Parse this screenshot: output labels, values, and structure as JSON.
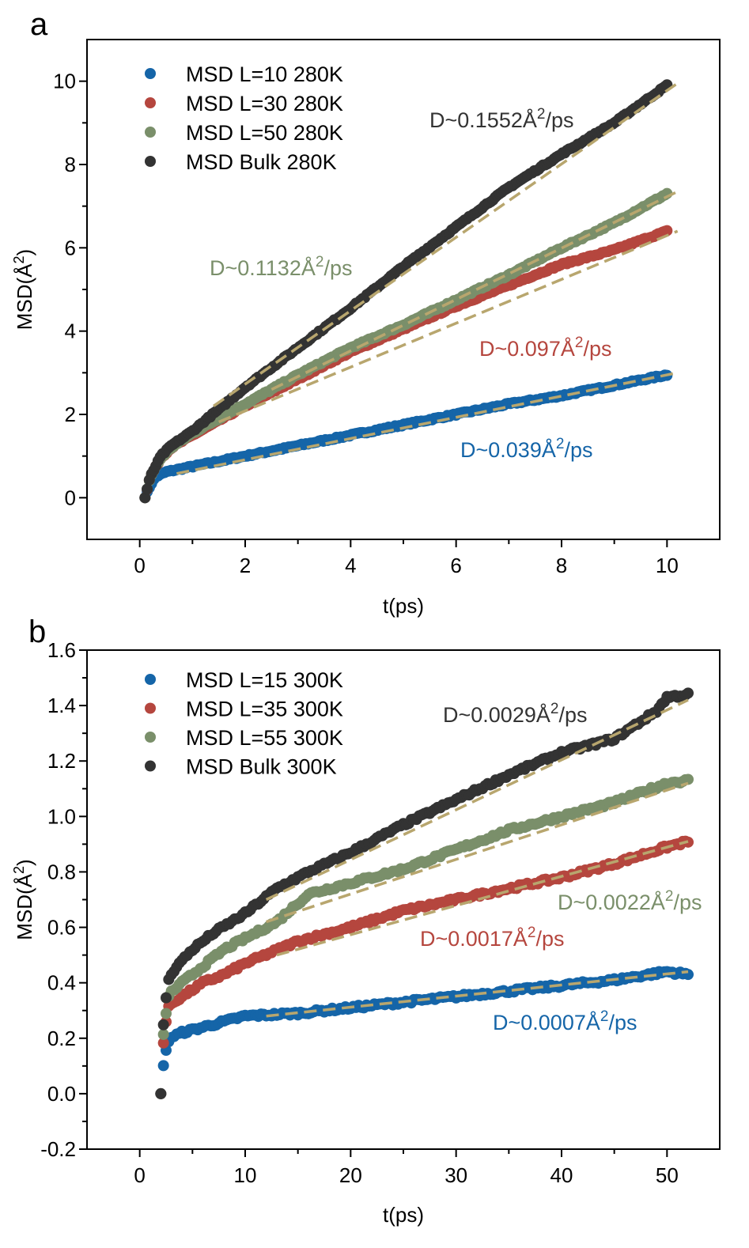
{
  "chart_data": [
    {
      "type": "scatter",
      "panel": "a",
      "xlabel": "t(ps)",
      "ylabel": "MSD(Å²)",
      "ylabel_main": "MSD(Å",
      "ylabel_sup": "2",
      "ylabel_close": ")",
      "xlim": [
        -1,
        11
      ],
      "ylim": [
        -1,
        11
      ],
      "xticks": [
        0,
        2,
        4,
        6,
        8,
        10
      ],
      "yticks": [
        0,
        2,
        4,
        6,
        8,
        10
      ],
      "xtick_labels": [
        "0",
        "2",
        "4",
        "6",
        "8",
        "10"
      ],
      "ytick_labels": [
        "0",
        "2",
        "4",
        "6",
        "8",
        "10"
      ],
      "legend_position": "top-left",
      "fit_color": "#B8A66E",
      "series": [
        {
          "name": "MSD L=10 280K",
          "color": "#1565A8",
          "x": [
            0.1,
            0.2,
            0.3,
            0.5,
            1,
            2,
            3,
            4,
            5,
            6,
            7,
            8,
            9,
            10
          ],
          "y": [
            0,
            0.3,
            0.5,
            0.62,
            0.75,
            1.0,
            1.25,
            1.5,
            1.75,
            2.0,
            2.25,
            2.45,
            2.7,
            2.95
          ],
          "fit": {
            "x0": 0.7,
            "x1": 10.2,
            "y0": 0.58,
            "y1": 3.0
          },
          "annotation": {
            "prefix": "D~0.039",
            "unit_main": "Å",
            "unit_sup": "2",
            "unit_suffix": "/ps"
          }
        },
        {
          "name": "MSD L=30 280K",
          "color": "#B5463E",
          "x": [
            0.1,
            0.2,
            0.4,
            0.6,
            1,
            2,
            3,
            4,
            5,
            6,
            7,
            8,
            9,
            10
          ],
          "y": [
            0,
            0.5,
            0.95,
            1.2,
            1.5,
            2.2,
            2.85,
            3.5,
            4.05,
            4.6,
            5.1,
            5.6,
            5.95,
            6.4
          ],
          "fit": {
            "x0": 1.5,
            "x1": 10.2,
            "y0": 1.82,
            "y1": 6.4
          },
          "annotation": {
            "prefix": "D~0.097",
            "unit_main": "Å",
            "unit_sup": "2",
            "unit_suffix": "/ps"
          }
        },
        {
          "name": "MSD L=50 280K",
          "color": "#7A8F6A",
          "x": [
            0.1,
            0.2,
            0.4,
            0.6,
            1,
            2,
            3,
            4,
            5,
            6,
            7,
            8,
            9,
            10
          ],
          "y": [
            0,
            0.5,
            0.95,
            1.2,
            1.55,
            2.25,
            2.95,
            3.6,
            4.15,
            4.75,
            5.35,
            6.0,
            6.6,
            7.3
          ],
          "fit": {
            "x0": 2.5,
            "x1": 10.2,
            "y0": 2.6,
            "y1": 7.35
          },
          "annotation": {
            "prefix": "D~0.1132",
            "unit_main": "Å",
            "unit_sup": "2",
            "unit_suffix": "/ps"
          }
        },
        {
          "name": "MSD Bulk 280K",
          "color": "#333333",
          "x": [
            0.1,
            0.2,
            0.4,
            0.6,
            1,
            2,
            3,
            4,
            5,
            6,
            7,
            8,
            9,
            10
          ],
          "y": [
            0,
            0.5,
            1.0,
            1.25,
            1.6,
            2.65,
            3.6,
            4.55,
            5.55,
            6.5,
            7.45,
            8.25,
            9.0,
            9.9
          ],
          "fit": {
            "x0": 1.4,
            "x1": 10.2,
            "y0": 2.2,
            "y1": 9.95
          },
          "annotation": {
            "prefix": "D~0.1552",
            "unit_main": "Å",
            "unit_sup": "2",
            "unit_suffix": "/ps"
          }
        }
      ]
    },
    {
      "type": "scatter",
      "panel": "b",
      "xlabel": "t(ps)",
      "ylabel": "MSD(Å²)",
      "ylabel_main": "MSD(Å",
      "ylabel_sup": "2",
      "ylabel_close": ")",
      "xlim": [
        -5,
        55
      ],
      "ylim": [
        -0.2,
        1.6
      ],
      "xticks": [
        0,
        10,
        20,
        30,
        40,
        50
      ],
      "yticks": [
        -0.2,
        0.0,
        0.2,
        0.4,
        0.6,
        0.8,
        1.0,
        1.2,
        1.4,
        1.6
      ],
      "xtick_labels": [
        "0",
        "10",
        "20",
        "30",
        "40",
        "50"
      ],
      "ytick_labels": [
        "-0.2",
        "0.0",
        "0.2",
        "0.4",
        "0.6",
        "0.8",
        "1.0",
        "1.2",
        "1.4",
        "1.6"
      ],
      "legend_position": "top-left",
      "fit_color": "#B8A66E",
      "series": [
        {
          "name": "MSD L=15 300K",
          "color": "#1565A8",
          "x": [
            2,
            2.3,
            2.8,
            4,
            6,
            8,
            10,
            15,
            20,
            25,
            30,
            35,
            40,
            45,
            50,
            52
          ],
          "y": [
            0,
            0.12,
            0.2,
            0.22,
            0.24,
            0.26,
            0.28,
            0.29,
            0.31,
            0.33,
            0.35,
            0.37,
            0.39,
            0.41,
            0.44,
            0.43
          ],
          "fit": {
            "x0": 12,
            "x1": 52,
            "y0": 0.28,
            "y1": 0.44
          },
          "annotation": {
            "prefix": "D~0.0007",
            "unit_main": "Å",
            "unit_sup": "2",
            "unit_suffix": "/ps"
          }
        },
        {
          "name": "MSD L=35 300K",
          "color": "#B5463E",
          "x": [
            2,
            2.3,
            2.8,
            4,
            6,
            8,
            10,
            15,
            20,
            25,
            30,
            35,
            40,
            45,
            50,
            52
          ],
          "y": [
            0,
            0.22,
            0.32,
            0.35,
            0.4,
            0.43,
            0.47,
            0.55,
            0.6,
            0.66,
            0.7,
            0.74,
            0.78,
            0.83,
            0.89,
            0.91
          ],
          "fit": {
            "x0": 13,
            "x1": 52,
            "y0": 0.5,
            "y1": 0.91
          },
          "annotation": {
            "prefix": "D~0.0017",
            "unit_main": "Å",
            "unit_sup": "2",
            "unit_suffix": "/ps"
          }
        },
        {
          "name": "MSD L=55 300K",
          "color": "#7A8F6A",
          "x": [
            2,
            2.3,
            2.8,
            4,
            6,
            8,
            10,
            13,
            16,
            20,
            25,
            30,
            35,
            40,
            45,
            50,
            52
          ],
          "y": [
            0,
            0.25,
            0.36,
            0.4,
            0.46,
            0.52,
            0.56,
            0.62,
            0.72,
            0.76,
            0.81,
            0.88,
            0.95,
            1.0,
            1.05,
            1.12,
            1.13
          ],
          "fit": {
            "x0": 12,
            "x1": 52,
            "y0": 0.62,
            "y1": 1.12
          },
          "annotation": {
            "prefix": "D~0.0022",
            "unit_main": "Å",
            "unit_sup": "2",
            "unit_suffix": "/ps"
          }
        },
        {
          "name": "MSD Bulk 300K",
          "color": "#333333",
          "x": [
            2,
            2.3,
            2.8,
            3.5,
            5,
            7,
            10,
            13,
            16,
            20,
            25,
            30,
            35,
            40,
            45,
            49,
            50,
            52
          ],
          "y": [
            0,
            0.3,
            0.42,
            0.46,
            0.52,
            0.58,
            0.65,
            0.74,
            0.8,
            0.87,
            0.97,
            1.06,
            1.15,
            1.23,
            1.28,
            1.38,
            1.43,
            1.44
          ],
          "fit": {
            "x0": 12,
            "x1": 52,
            "y0": 0.7,
            "y1": 1.42
          },
          "annotation": {
            "prefix": "D~0.0029",
            "unit_main": "Å",
            "unit_sup": "2",
            "unit_suffix": "/ps"
          }
        }
      ]
    }
  ]
}
